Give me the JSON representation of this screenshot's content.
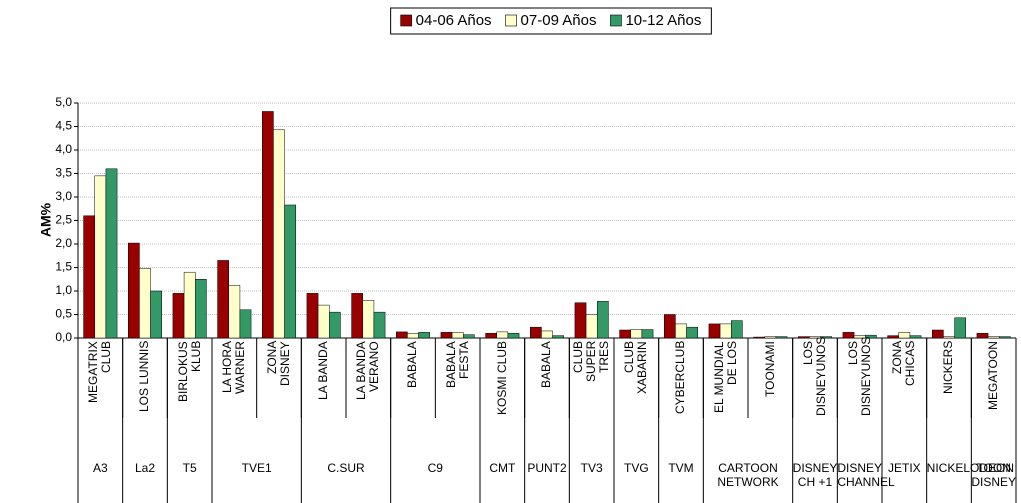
{
  "chart_data": {
    "type": "bar",
    "y_label": "AM%",
    "categories": [
      "MEGATRIX CLUB",
      "LOS LUNNIS",
      "BIRLOKUS KLUB",
      "LA HORA WARNER",
      "ZONA DISNEY",
      "LA BANDA",
      "LA BANDA VERANO",
      "BABALA",
      "BABALA FESTA",
      "KOSMI CLUB",
      "BABALA",
      "CLUB SUPER TRES",
      "CLUB XABARIN",
      "CYBERCLUB",
      "EL MUNDIAL DE LOS",
      "TOONAMI",
      "LOS DISNEYUNOS",
      "LOS DISNEYUNOS",
      "ZONA CHICAS",
      "NICKERS",
      "MEGATOON"
    ],
    "group_labels": [
      "A3",
      "La2",
      "T5",
      "TVE1",
      null,
      "C.SUR",
      null,
      "C9",
      null,
      "CMT",
      "PUNT2",
      "TV3",
      "TVG",
      "TVM",
      "CARTOON NETWORK",
      null,
      "DISNEY CH +1",
      "DISNEY CHANNEL",
      "JETIX",
      "NICKELODEON",
      "TOON DISNEY"
    ],
    "series": [
      {
        "name": "04-06 Años",
        "color": "#990000",
        "values": [
          2.6,
          2.02,
          0.95,
          1.65,
          4.82,
          0.95,
          0.95,
          0.13,
          0.12,
          0.1,
          0.23,
          0.75,
          0.17,
          0.5,
          0.3,
          0.02,
          0.03,
          0.12,
          0.05,
          0.17,
          0.1
        ]
      },
      {
        "name": "07-09 Años",
        "color": "#ffffcc",
        "values": [
          3.45,
          1.48,
          1.4,
          1.12,
          4.43,
          0.7,
          0.8,
          0.1,
          0.12,
          0.13,
          0.15,
          0.5,
          0.18,
          0.3,
          0.3,
          0.03,
          0.03,
          0.05,
          0.12,
          0.03,
          0.03
        ]
      },
      {
        "name": "10-12 Años",
        "color": "#339966",
        "values": [
          3.6,
          1.0,
          1.25,
          0.6,
          2.83,
          0.55,
          0.55,
          0.12,
          0.07,
          0.1,
          0.05,
          0.78,
          0.18,
          0.23,
          0.37,
          0.03,
          0.03,
          0.06,
          0.05,
          0.43,
          0.03
        ]
      }
    ],
    "ylim": [
      0,
      5
    ],
    "yticks": [
      {
        "value": 0,
        "label": "0,0"
      },
      {
        "value": 0.5,
        "label": "0,5"
      },
      {
        "value": 1,
        "label": "1,0"
      },
      {
        "value": 1.5,
        "label": "1,5"
      },
      {
        "value": 2,
        "label": "2,0"
      },
      {
        "value": 2.5,
        "label": "2,5"
      },
      {
        "value": 3,
        "label": "3,0"
      },
      {
        "value": 3.5,
        "label": "3,5"
      },
      {
        "value": 4,
        "label": "4,0"
      },
      {
        "value": 4.5,
        "label": "4,5"
      },
      {
        "value": 5,
        "label": "5,0"
      }
    ],
    "grid": true,
    "legend": "top"
  }
}
